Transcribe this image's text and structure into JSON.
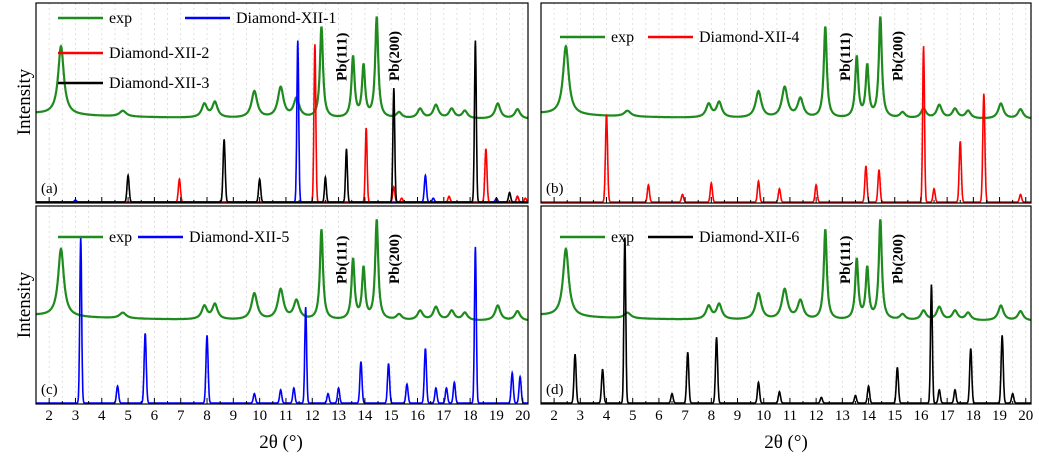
{
  "figure": {
    "x_axis_label": "2θ (°)",
    "y_axis_label": "Intensity",
    "x_tick_labels": [
      "2",
      "3",
      "4",
      "5",
      "6",
      "7",
      "8",
      "9",
      "10",
      "11",
      "12",
      "13",
      "14",
      "15",
      "16",
      "17",
      "18",
      "19",
      "20"
    ],
    "colors": {
      "exp": "#1f8b1f",
      "Diamond-XII-1": "#0000ff",
      "Diamond-XII-2": "#ff0000",
      "Diamond-XII-3": "#000000",
      "Diamond-XII-4": "#ff0000",
      "Diamond-XII-5": "#0000ff",
      "Diamond-XII-6": "#000000"
    }
  },
  "chart_data": [
    {
      "type": "line",
      "panel": "(a)",
      "xlim": [
        1.5,
        20.2
      ],
      "ylim": [
        0,
        1
      ],
      "grid": "vertical dotted",
      "legend": [
        "exp",
        "Diamond-XII-1",
        "Diamond-XII-2",
        "Diamond-XII-3"
      ],
      "annotations": [
        {
          "text": "Pb(111)",
          "x": 13.3
        },
        {
          "text": "Pb(200)",
          "x": 15.3
        }
      ],
      "series": [
        {
          "name": "exp",
          "peaks": [
            [
              2.45,
              0.36,
              0.13
            ],
            [
              4.8,
              0.03,
              0.15
            ],
            [
              7.9,
              0.07,
              0.12
            ],
            [
              8.3,
              0.08,
              0.12
            ],
            [
              9.8,
              0.14,
              0.13
            ],
            [
              10.8,
              0.16,
              0.13
            ],
            [
              11.4,
              0.1,
              0.13
            ],
            [
              12.35,
              0.48,
              0.07
            ],
            [
              13.55,
              0.32,
              0.07
            ],
            [
              13.95,
              0.27,
              0.07
            ],
            [
              14.45,
              0.53,
              0.07
            ],
            [
              15.3,
              0.03,
              0.12
            ],
            [
              16.1,
              0.05,
              0.12
            ],
            [
              16.7,
              0.07,
              0.12
            ],
            [
              17.3,
              0.05,
              0.12
            ],
            [
              17.8,
              0.04,
              0.12
            ],
            [
              19.05,
              0.08,
              0.12
            ],
            [
              19.8,
              0.05,
              0.12
            ]
          ]
        },
        {
          "name": "Diamond-XII-1",
          "peaks": [
            [
              3.0,
              0.01,
              0.04
            ],
            [
              11.45,
              0.85,
              0.035
            ],
            [
              16.3,
              0.14,
              0.04
            ],
            [
              16.6,
              0.02,
              0.04
            ],
            [
              19.0,
              0.02,
              0.04
            ],
            [
              19.8,
              0.03,
              0.04
            ]
          ]
        },
        {
          "name": "Diamond-XII-2",
          "peaks": [
            [
              6.95,
              0.12,
              0.04
            ],
            [
              12.1,
              0.83,
              0.035
            ],
            [
              14.05,
              0.39,
              0.035
            ],
            [
              15.1,
              0.08,
              0.04
            ],
            [
              15.4,
              0.02,
              0.04
            ],
            [
              17.2,
              0.03,
              0.04
            ],
            [
              18.6,
              0.28,
              0.04
            ],
            [
              19.8,
              0.03,
              0.04
            ],
            [
              20.1,
              0.02,
              0.04
            ]
          ]
        },
        {
          "name": "Diamond-XII-3",
          "peaks": [
            [
              5.0,
              0.14,
              0.04
            ],
            [
              8.65,
              0.33,
              0.04
            ],
            [
              10.0,
              0.12,
              0.04
            ],
            [
              12.5,
              0.13,
              0.035
            ],
            [
              13.3,
              0.28,
              0.035
            ],
            [
              15.1,
              0.6,
              0.035
            ],
            [
              18.2,
              0.85,
              0.035
            ],
            [
              19.5,
              0.05,
              0.04
            ]
          ]
        }
      ]
    },
    {
      "type": "line",
      "panel": "(b)",
      "xlim": [
        1.5,
        20.2
      ],
      "ylim": [
        0,
        1
      ],
      "grid": "vertical dotted",
      "legend": [
        "exp",
        "Diamond-XII-4"
      ],
      "annotations": [
        {
          "text": "Pb(111)",
          "x": 13.3
        },
        {
          "text": "Pb(200)",
          "x": 15.3
        }
      ],
      "series": [
        {
          "name": "exp",
          "peaks": [
            [
              2.45,
              0.36,
              0.13
            ],
            [
              4.8,
              0.03,
              0.15
            ],
            [
              7.9,
              0.07,
              0.12
            ],
            [
              8.3,
              0.08,
              0.12
            ],
            [
              9.8,
              0.14,
              0.13
            ],
            [
              10.8,
              0.16,
              0.13
            ],
            [
              11.4,
              0.1,
              0.13
            ],
            [
              12.35,
              0.48,
              0.07
            ],
            [
              13.55,
              0.32,
              0.07
            ],
            [
              13.95,
              0.27,
              0.07
            ],
            [
              14.45,
              0.53,
              0.07
            ],
            [
              15.3,
              0.03,
              0.12
            ],
            [
              16.1,
              0.05,
              0.12
            ],
            [
              16.7,
              0.07,
              0.12
            ],
            [
              17.3,
              0.05,
              0.12
            ],
            [
              17.8,
              0.04,
              0.12
            ],
            [
              19.05,
              0.08,
              0.12
            ],
            [
              19.8,
              0.05,
              0.12
            ]
          ]
        },
        {
          "name": "Diamond-XII-4",
          "peaks": [
            [
              4.0,
              0.46,
              0.04
            ],
            [
              5.6,
              0.09,
              0.04
            ],
            [
              6.9,
              0.04,
              0.04
            ],
            [
              8.0,
              0.1,
              0.04
            ],
            [
              9.8,
              0.11,
              0.04
            ],
            [
              10.6,
              0.07,
              0.04
            ],
            [
              12.0,
              0.09,
              0.04
            ],
            [
              13.9,
              0.19,
              0.04
            ],
            [
              14.4,
              0.17,
              0.04
            ],
            [
              16.1,
              0.82,
              0.035
            ],
            [
              16.5,
              0.07,
              0.04
            ],
            [
              17.5,
              0.32,
              0.04
            ],
            [
              18.4,
              0.57,
              0.04
            ],
            [
              19.8,
              0.04,
              0.04
            ]
          ]
        }
      ]
    },
    {
      "type": "line",
      "panel": "(c)",
      "xlim": [
        1.5,
        20.2
      ],
      "ylim": [
        0,
        1
      ],
      "grid": "vertical dotted",
      "legend": [
        "exp",
        "Diamond-XII-5"
      ],
      "annotations": [
        {
          "text": "Pb(111)",
          "x": 13.3
        },
        {
          "text": "Pb(200)",
          "x": 15.3
        }
      ],
      "series": [
        {
          "name": "exp",
          "peaks": [
            [
              2.45,
              0.36,
              0.13
            ],
            [
              4.8,
              0.03,
              0.15
            ],
            [
              7.9,
              0.07,
              0.12
            ],
            [
              8.3,
              0.08,
              0.12
            ],
            [
              9.8,
              0.14,
              0.13
            ],
            [
              10.8,
              0.16,
              0.13
            ],
            [
              11.4,
              0.1,
              0.13
            ],
            [
              12.35,
              0.48,
              0.07
            ],
            [
              13.55,
              0.32,
              0.07
            ],
            [
              13.95,
              0.27,
              0.07
            ],
            [
              14.45,
              0.53,
              0.07
            ],
            [
              15.3,
              0.03,
              0.12
            ],
            [
              16.1,
              0.05,
              0.12
            ],
            [
              16.7,
              0.07,
              0.12
            ],
            [
              17.3,
              0.05,
              0.12
            ],
            [
              17.8,
              0.04,
              0.12
            ],
            [
              19.05,
              0.08,
              0.12
            ],
            [
              19.8,
              0.05,
              0.12
            ]
          ]
        },
        {
          "name": "Diamond-XII-5",
          "peaks": [
            [
              3.2,
              0.88,
              0.035
            ],
            [
              4.6,
              0.09,
              0.04
            ],
            [
              5.65,
              0.37,
              0.04
            ],
            [
              8.0,
              0.36,
              0.04
            ],
            [
              9.8,
              0.05,
              0.04
            ],
            [
              10.8,
              0.07,
              0.04
            ],
            [
              11.3,
              0.08,
              0.04
            ],
            [
              11.75,
              0.51,
              0.035
            ],
            [
              12.6,
              0.05,
              0.04
            ],
            [
              13.0,
              0.08,
              0.04
            ],
            [
              13.85,
              0.22,
              0.04
            ],
            [
              14.9,
              0.21,
              0.04
            ],
            [
              15.6,
              0.1,
              0.04
            ],
            [
              16.3,
              0.29,
              0.04
            ],
            [
              16.7,
              0.08,
              0.04
            ],
            [
              17.1,
              0.08,
              0.04
            ],
            [
              17.4,
              0.11,
              0.04
            ],
            [
              18.2,
              0.83,
              0.035
            ],
            [
              19.6,
              0.16,
              0.04
            ],
            [
              19.9,
              0.14,
              0.04
            ]
          ]
        }
      ]
    },
    {
      "type": "line",
      "panel": "(d)",
      "xlim": [
        1.5,
        20.2
      ],
      "ylim": [
        0,
        1
      ],
      "grid": "vertical dotted",
      "legend": [
        "exp",
        "Diamond-XII-6"
      ],
      "annotations": [
        {
          "text": "Pb(111)",
          "x": 13.3
        },
        {
          "text": "Pb(200)",
          "x": 15.3
        }
      ],
      "series": [
        {
          "name": "exp",
          "peaks": [
            [
              2.45,
              0.36,
              0.13
            ],
            [
              4.8,
              0.03,
              0.15
            ],
            [
              7.9,
              0.07,
              0.12
            ],
            [
              8.3,
              0.08,
              0.12
            ],
            [
              9.8,
              0.14,
              0.13
            ],
            [
              10.8,
              0.16,
              0.13
            ],
            [
              11.4,
              0.1,
              0.13
            ],
            [
              12.35,
              0.48,
              0.07
            ],
            [
              13.55,
              0.32,
              0.07
            ],
            [
              13.95,
              0.27,
              0.07
            ],
            [
              14.45,
              0.53,
              0.07
            ],
            [
              15.3,
              0.03,
              0.12
            ],
            [
              16.1,
              0.05,
              0.12
            ],
            [
              16.7,
              0.07,
              0.12
            ],
            [
              17.3,
              0.05,
              0.12
            ],
            [
              17.8,
              0.04,
              0.12
            ],
            [
              19.05,
              0.08,
              0.12
            ],
            [
              19.8,
              0.05,
              0.12
            ]
          ]
        },
        {
          "name": "Diamond-XII-6",
          "peaks": [
            [
              2.8,
              0.26,
              0.04
            ],
            [
              3.85,
              0.18,
              0.04
            ],
            [
              4.7,
              0.88,
              0.035
            ],
            [
              6.5,
              0.05,
              0.04
            ],
            [
              7.1,
              0.27,
              0.04
            ],
            [
              8.2,
              0.35,
              0.04
            ],
            [
              9.8,
              0.11,
              0.04
            ],
            [
              10.6,
              0.06,
              0.04
            ],
            [
              12.2,
              0.03,
              0.04
            ],
            [
              13.5,
              0.04,
              0.04
            ],
            [
              14.0,
              0.09,
              0.04
            ],
            [
              15.1,
              0.19,
              0.04
            ],
            [
              16.4,
              0.63,
              0.035
            ],
            [
              16.7,
              0.07,
              0.04
            ],
            [
              17.3,
              0.07,
              0.04
            ],
            [
              17.9,
              0.29,
              0.04
            ],
            [
              19.1,
              0.36,
              0.04
            ],
            [
              19.5,
              0.05,
              0.04
            ]
          ]
        }
      ]
    }
  ]
}
